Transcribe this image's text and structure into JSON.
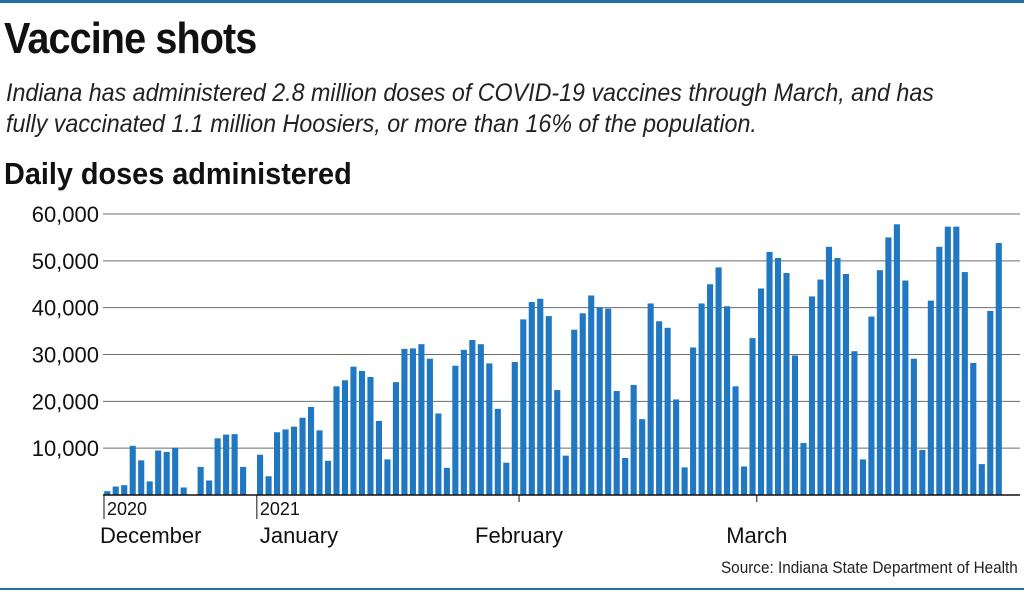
{
  "header": {
    "title": "Vaccine shots",
    "subtitle": "Indiana has administered 2.8 million doses of COVID-19 vaccines through March, and has fully vaccinated 1.1 million Hoosiers, or more than 16% of the population."
  },
  "source": "Source: Indiana State Department of Health",
  "colors": {
    "bar": "#1f78c1",
    "rule": "#1f6fa8",
    "grid": "#6e6e6e"
  },
  "chart_data": {
    "type": "bar",
    "title": "Daily doses administered",
    "xlabel": "",
    "ylabel": "",
    "ylim": [
      0,
      60000
    ],
    "yticks": [
      10000,
      20000,
      30000,
      40000,
      50000,
      60000
    ],
    "ytick_labels": [
      "10,000",
      "20,000",
      "30,000",
      "40,000",
      "50,000",
      "60,000"
    ],
    "grid": true,
    "x_start": "2020-12-14",
    "x_end": "2021-03-31",
    "year_labels": [
      {
        "label": "2020",
        "date": "2020-12-14"
      },
      {
        "label": "2021",
        "date": "2021-01-01"
      }
    ],
    "month_labels": [
      {
        "label": "December",
        "date": "2020-12-14"
      },
      {
        "label": "January",
        "date": "2021-01-01"
      },
      {
        "label": "February",
        "date": "2021-02-01"
      },
      {
        "label": "March",
        "date": "2021-03-01"
      }
    ],
    "series": [
      {
        "values": [
          800,
          1800,
          2100,
          10500,
          7400,
          2900,
          9500,
          9200,
          10100,
          1600,
          null,
          6000,
          3100,
          12100,
          12900,
          13000,
          6000,
          null,
          8600,
          4000,
          13400,
          14000,
          14600,
          16500,
          18800,
          13800,
          7300,
          23200,
          24500,
          27400,
          26500,
          25200,
          15800,
          7600,
          24100,
          31200,
          31300,
          32200,
          29100,
          17400,
          5800,
          27600,
          31000,
          33100,
          32200,
          28100,
          18400,
          6900,
          28400,
          37500,
          41200,
          41900,
          38200,
          22400,
          8400,
          35300,
          38800,
          42600,
          40100,
          39800,
          22200,
          7900,
          23500,
          16200,
          40900,
          37100,
          35700,
          20400,
          5900,
          31500,
          40900,
          45000,
          48600,
          40300,
          23200,
          6100,
          33500,
          44100,
          51900,
          50600,
          47400,
          29800,
          11100,
          42400,
          46000,
          53000,
          50600,
          47200,
          30700,
          7600,
          38100,
          48000,
          55000,
          57800,
          45800,
          29100,
          9600,
          41500,
          53000,
          57300,
          57300,
          47600,
          28200,
          6600,
          39300,
          53800
        ]
      }
    ]
  }
}
